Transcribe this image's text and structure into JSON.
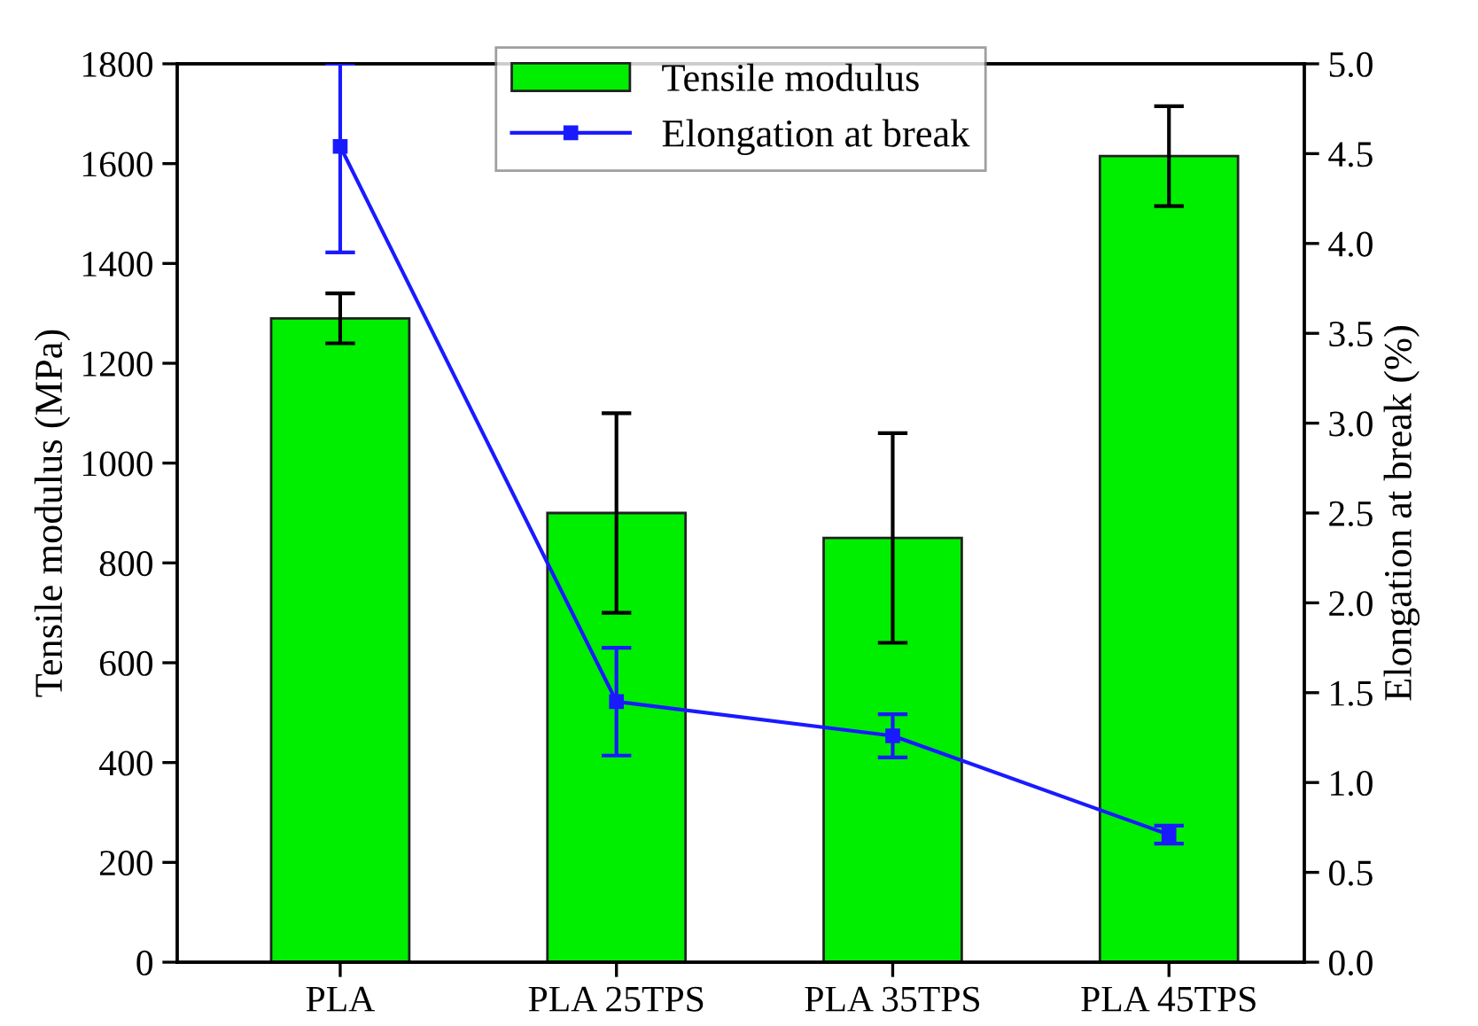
{
  "chart_data": {
    "type": "bar",
    "categories": [
      "PLA",
      "PLA 25TPS",
      "PLA 35TPS",
      "PLA 45TPS"
    ],
    "ylabel": "Tensile modulus (MPa)",
    "y2label": "Elongation at break (%)",
    "ylim": [
      0,
      1800
    ],
    "yticks": [
      0,
      200,
      400,
      600,
      800,
      1000,
      1200,
      1400,
      1600,
      1800
    ],
    "y2lim": [
      0.0,
      5.0
    ],
    "y2ticks": [
      {
        "value": 0,
        "label": "0.0"
      },
      {
        "value": 0.5,
        "label": "0.5"
      },
      {
        "value": 1,
        "label": "1.0"
      },
      {
        "value": 1.5,
        "label": "1.5"
      },
      {
        "value": 2,
        "label": "2.0"
      },
      {
        "value": 2.5,
        "label": "2.5"
      },
      {
        "value": 3,
        "label": "3.0"
      },
      {
        "value": 3.5,
        "label": "3.5"
      },
      {
        "value": 4,
        "label": "4.0"
      },
      {
        "value": 4.5,
        "label": "4.5"
      },
      {
        "value": 5,
        "label": "5.0"
      }
    ],
    "legend": "top",
    "grid": false,
    "series": [
      {
        "name": "Tensile modulus",
        "color": "#00ee00",
        "values": [
          1290,
          900,
          850,
          1615
        ],
        "errors": [
          50,
          200,
          210,
          100
        ]
      },
      {
        "name": "Elongation at break",
        "type": "line",
        "axis": "y2",
        "color": "#1a1aff",
        "marker": "square",
        "values": [
          4.54,
          1.45,
          1.26,
          0.71
        ],
        "errors": [
          [
            3.95,
            5.0
          ],
          0.3,
          0.12,
          0.05
        ]
      }
    ]
  }
}
